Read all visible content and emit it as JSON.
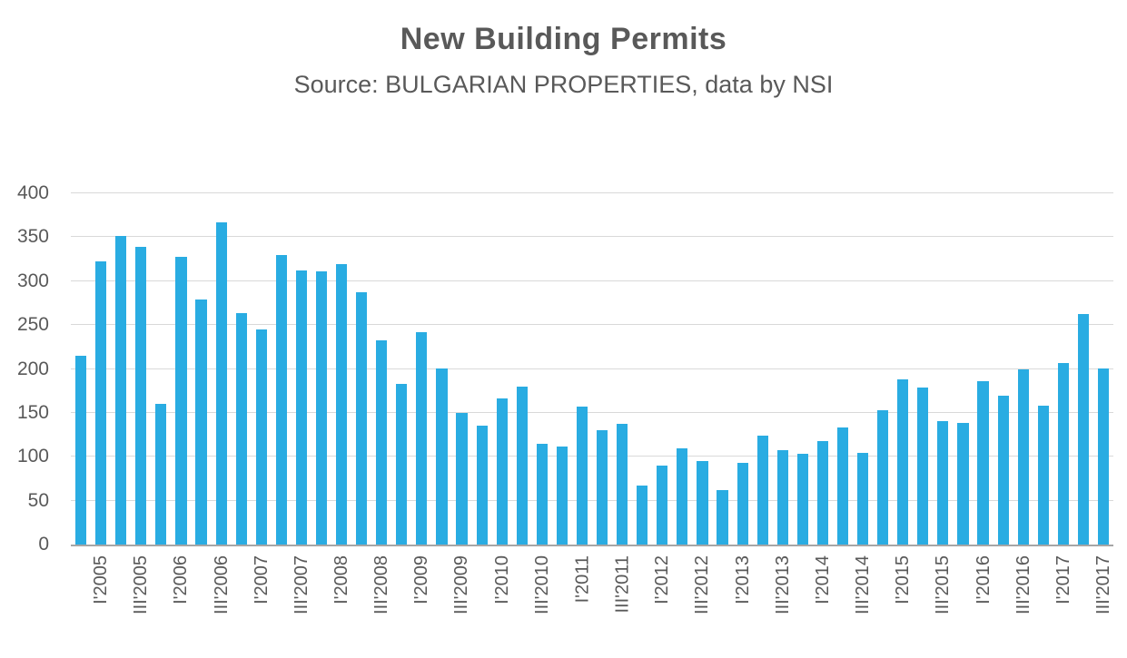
{
  "header": {
    "title": "New Building Permits",
    "subtitle": "Source: BULGARIAN PROPERTIES, data by NSI"
  },
  "colors": {
    "bar": "#29ace2",
    "grid": "#d9d9d9",
    "axis": "#a6a6a6",
    "text": "#595959"
  },
  "chart_data": {
    "type": "bar",
    "title": "New Building Permits",
    "subtitle": "Source: BULGARIAN PROPERTIES, data by NSI",
    "categories": [
      "I'2005",
      "II'2005",
      "III'2005",
      "IV'2005",
      "I'2006",
      "II'2006",
      "III'2006",
      "IV'2006",
      "I'2007",
      "II'2007",
      "III'2007",
      "IV'2007",
      "I'2008",
      "II'2008",
      "III'2008",
      "IV'2008",
      "I'2009",
      "II'2009",
      "III'2009",
      "IV'2009",
      "I'2010",
      "II'2010",
      "III'2010",
      "IV'2010",
      "I'2011",
      "II'2011",
      "III'2011",
      "IV'2011",
      "I'2012",
      "II'2012",
      "III'2012",
      "IV'2012",
      "I'2013",
      "II'2013",
      "III'2013",
      "IV'2013",
      "I'2014",
      "II'2014",
      "III'2014",
      "IV'2014",
      "I'2015",
      "II'2015",
      "III'2015",
      "IV'2015",
      "I'2016",
      "II'2016",
      "III'2016",
      "IV'2016",
      "I'2017",
      "II'2017",
      "III'2017",
      "IV'2017"
    ],
    "values": [
      215,
      322,
      351,
      339,
      160,
      328,
      279,
      367,
      264,
      245,
      330,
      312,
      311,
      319,
      287,
      233,
      183,
      242,
      201,
      150,
      135,
      166,
      180,
      115,
      112,
      157,
      130,
      137,
      67,
      90,
      110,
      95,
      62,
      93,
      124,
      107,
      103,
      118,
      133,
      104,
      153,
      188,
      179,
      141,
      139,
      186,
      170,
      200,
      158,
      207,
      263,
      201
    ],
    "shown_tick_labels": [
      "I'2005",
      "III'2005",
      "I'2006",
      "III'2006",
      "I'2007",
      "III'2007",
      "I'2008",
      "III'2008",
      "I'2009",
      "III'2009",
      "I'2010",
      "III'2010",
      "I'2011",
      "III'2011",
      "I'2012",
      "III'2012",
      "I'2013",
      "III'2013",
      "I'2014",
      "III'2014",
      "I'2015",
      "III'2015",
      "I'2016",
      "III'2016",
      "I'2017",
      "III'2017"
    ],
    "xlabel": "",
    "ylabel": "",
    "ylim": [
      0,
      400
    ],
    "ytick_step": 50,
    "yticks": [
      0,
      50,
      100,
      150,
      200,
      250,
      300,
      350,
      400
    ],
    "grid": "horizontal",
    "legend": "none",
    "x_tick_rotation": 90,
    "x_tick_frequency": "every other category (I and III quarters only)"
  }
}
